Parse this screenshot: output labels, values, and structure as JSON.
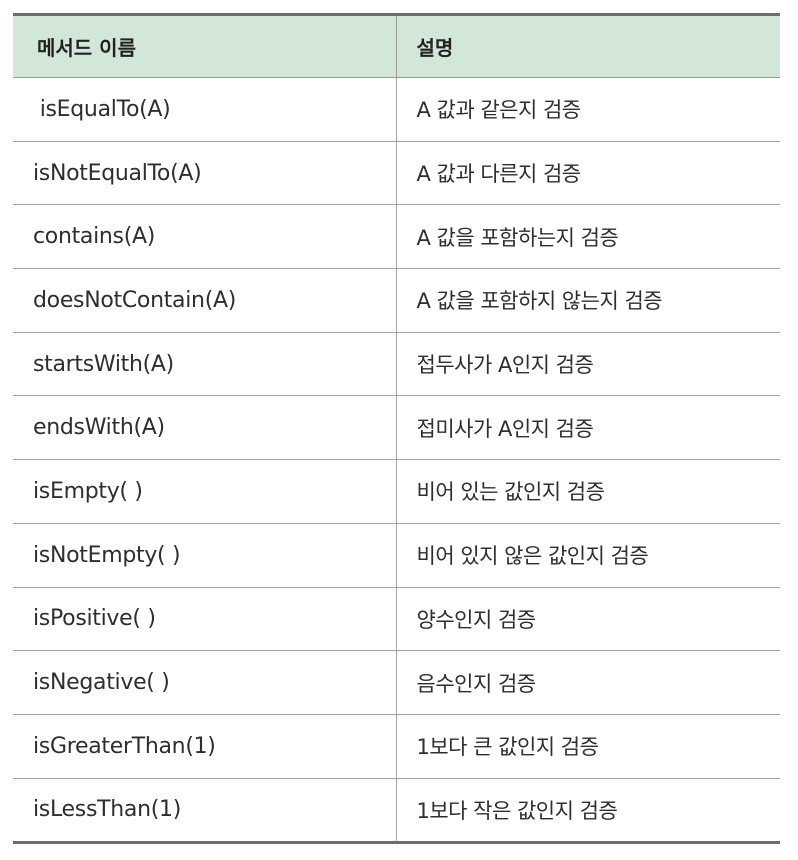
{
  "table": {
    "headers": [
      "메서드 이름",
      "설명"
    ],
    "rows": [
      {
        "method": " isEqualTo(A)",
        "description": "A 값과 같은지 검증"
      },
      {
        "method": "isNotEqualTo(A)",
        "description": "A 값과 다른지 검증"
      },
      {
        "method": "contains(A)",
        "description": "A 값을 포함하는지 검증"
      },
      {
        "method": "doesNotContain(A)",
        "description": "A 값을 포함하지 않는지 검증"
      },
      {
        "method": "startsWith(A)",
        "description": "접두사가 A인지 검증"
      },
      {
        "method": "endsWith(A)",
        "description": "접미사가 A인지 검증"
      },
      {
        "method": "isEmpty( )",
        "description": "비어 있는 값인지 검증"
      },
      {
        "method": "isNotEmpty( )",
        "description": "비어 있지 않은 값인지 검증"
      },
      {
        "method": "isPositive( )",
        "description": "양수인지 검증"
      },
      {
        "method": "isNegative( )",
        "description": "음수인지 검증"
      },
      {
        "method": "isGreaterThan(1)",
        "description": "1보다 큰 값인지 검증"
      },
      {
        "method": "isLessThan(1)",
        "description": "1보다 작은 값인지 검증"
      }
    ]
  },
  "colors": {
    "header_background": "#d2e7d8",
    "border": "#a4a4a4",
    "rule": "#6d6d6d"
  }
}
